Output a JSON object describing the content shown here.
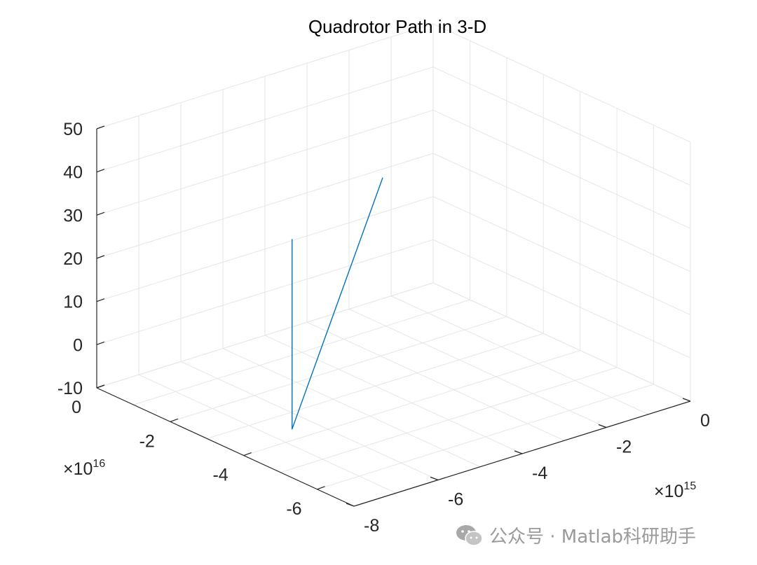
{
  "chart_data": {
    "type": "line3d",
    "title": "Quadrotor Path in 3-D",
    "x_axis": {
      "ticks": [
        "0",
        "-2",
        "-4",
        "-6"
      ],
      "multiplier_base": "×10",
      "multiplier_exp": "16",
      "lim": [
        -7,
        0
      ]
    },
    "y_axis": {
      "ticks": [
        "0",
        "-2",
        "-4",
        "-6",
        "-8"
      ],
      "multiplier_base": "×10",
      "multiplier_exp": "15",
      "lim": [
        -8,
        0
      ]
    },
    "z_axis": {
      "ticks": [
        "50",
        "40",
        "30",
        "20",
        "10",
        "0",
        "-10"
      ],
      "lim": [
        -10,
        50
      ]
    },
    "grid": true,
    "series": [
      {
        "color": "#0072BD",
        "points": [
          [
            0,
            -1.2,
            18
          ],
          [
            -3.6,
            -6.5,
            -10
          ],
          [
            -3.6,
            -6.5,
            34
          ],
          [
            -3.6,
            -6.5,
            34
          ]
        ]
      }
    ]
  },
  "watermark": {
    "text": "公众号 · Matlab科研助手"
  },
  "colors": {
    "line": "#0072BD",
    "grid": "#e6e6e6",
    "axis": "#262626"
  }
}
